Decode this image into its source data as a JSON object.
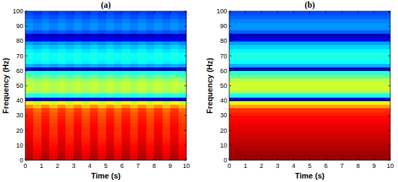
{
  "chart_data": [
    {
      "type": "heatmap",
      "title": "(a)",
      "x_label": "Time (s)",
      "y_label": "Frequency (Hz)",
      "xlim": [
        0,
        10
      ],
      "ylim": [
        0,
        100
      ],
      "xticks": [
        0,
        1,
        2,
        3,
        4,
        5,
        6,
        7,
        8,
        9,
        10
      ],
      "yticks": [
        0,
        10,
        20,
        30,
        40,
        50,
        60,
        70,
        80,
        90,
        100
      ],
      "zlim": [
        0,
        1
      ],
      "x_bins": [
        0,
        0.5,
        1,
        1.5,
        2,
        2.5,
        3,
        3.5,
        4,
        4.5,
        5,
        5.5,
        6,
        6.5,
        7,
        7.5,
        8,
        8.5,
        9,
        9.5,
        10
      ],
      "y_bins": [
        0,
        2.5,
        5,
        7.5,
        10,
        12.5,
        15,
        17.5,
        20,
        22.5,
        25,
        27.5,
        30,
        32.5,
        35,
        37.5,
        40,
        42.5,
        45,
        47.5,
        50,
        52.5,
        55,
        57.5,
        60,
        62.5,
        65,
        67.5,
        70,
        72.5,
        75,
        77.5,
        80,
        82.5,
        85,
        87.5,
        90,
        92.5,
        95,
        97.5,
        100
      ],
      "cells": [
        [
          0.95,
          0.9,
          0.95,
          0.9,
          0.95,
          0.9,
          0.95,
          0.9,
          0.95,
          0.9,
          0.95,
          0.9,
          0.95,
          0.9,
          0.95,
          0.9,
          0.95,
          0.9,
          0.95,
          0.9
        ],
        [
          0.94,
          0.89,
          0.94,
          0.89,
          0.94,
          0.89,
          0.94,
          0.89,
          0.94,
          0.89,
          0.94,
          0.89,
          0.94,
          0.89,
          0.94,
          0.89,
          0.94,
          0.89,
          0.94,
          0.89
        ],
        [
          0.93,
          0.88,
          0.93,
          0.88,
          0.93,
          0.88,
          0.93,
          0.88,
          0.93,
          0.88,
          0.93,
          0.88,
          0.93,
          0.88,
          0.93,
          0.88,
          0.93,
          0.88,
          0.93,
          0.88
        ],
        [
          0.92,
          0.87,
          0.92,
          0.87,
          0.92,
          0.87,
          0.92,
          0.87,
          0.92,
          0.87,
          0.92,
          0.87,
          0.92,
          0.87,
          0.92,
          0.87,
          0.92,
          0.87,
          0.92,
          0.87
        ],
        [
          0.91,
          0.86,
          0.91,
          0.86,
          0.91,
          0.86,
          0.91,
          0.86,
          0.91,
          0.86,
          0.91,
          0.86,
          0.91,
          0.86,
          0.91,
          0.86,
          0.91,
          0.86,
          0.91,
          0.86
        ],
        [
          0.9,
          0.85,
          0.9,
          0.85,
          0.9,
          0.85,
          0.9,
          0.85,
          0.9,
          0.85,
          0.9,
          0.85,
          0.9,
          0.85,
          0.9,
          0.85,
          0.9,
          0.85,
          0.9,
          0.85
        ],
        [
          0.89,
          0.84,
          0.89,
          0.84,
          0.89,
          0.84,
          0.89,
          0.84,
          0.89,
          0.84,
          0.89,
          0.84,
          0.89,
          0.84,
          0.89,
          0.84,
          0.89,
          0.84,
          0.89,
          0.84
        ],
        [
          0.88,
          0.83,
          0.88,
          0.83,
          0.88,
          0.83,
          0.88,
          0.83,
          0.88,
          0.83,
          0.88,
          0.83,
          0.88,
          0.83,
          0.88,
          0.83,
          0.88,
          0.83,
          0.88,
          0.83
        ],
        [
          0.88,
          0.83,
          0.88,
          0.83,
          0.88,
          0.83,
          0.88,
          0.83,
          0.88,
          0.83,
          0.88,
          0.83,
          0.88,
          0.83,
          0.88,
          0.83,
          0.88,
          0.83,
          0.88,
          0.83
        ],
        [
          0.87,
          0.82,
          0.87,
          0.82,
          0.87,
          0.82,
          0.87,
          0.82,
          0.87,
          0.82,
          0.87,
          0.82,
          0.87,
          0.82,
          0.87,
          0.82,
          0.87,
          0.82,
          0.87,
          0.82
        ],
        [
          0.86,
          0.81,
          0.86,
          0.81,
          0.86,
          0.81,
          0.86,
          0.81,
          0.86,
          0.81,
          0.86,
          0.81,
          0.86,
          0.81,
          0.86,
          0.81,
          0.86,
          0.81,
          0.86,
          0.81
        ],
        [
          0.85,
          0.8,
          0.85,
          0.8,
          0.85,
          0.8,
          0.85,
          0.8,
          0.85,
          0.8,
          0.85,
          0.8,
          0.85,
          0.8,
          0.85,
          0.8,
          0.85,
          0.8,
          0.85,
          0.8
        ],
        [
          0.84,
          0.79,
          0.84,
          0.79,
          0.84,
          0.79,
          0.84,
          0.79,
          0.84,
          0.79,
          0.84,
          0.79,
          0.84,
          0.79,
          0.84,
          0.79,
          0.84,
          0.79,
          0.84,
          0.79
        ],
        [
          0.82,
          0.77,
          0.82,
          0.77,
          0.82,
          0.77,
          0.82,
          0.77,
          0.82,
          0.77,
          0.82,
          0.77,
          0.82,
          0.77,
          0.82,
          0.77,
          0.82,
          0.77,
          0.82,
          0.77
        ],
        [
          0.74,
          0.69,
          0.74,
          0.69,
          0.74,
          0.69,
          0.74,
          0.69,
          0.74,
          0.69,
          0.74,
          0.69,
          0.74,
          0.69,
          0.74,
          0.69,
          0.74,
          0.69,
          0.74,
          0.69
        ],
        [
          0.62,
          0.57,
          0.62,
          0.57,
          0.62,
          0.57,
          0.62,
          0.57,
          0.62,
          0.57,
          0.62,
          0.57,
          0.62,
          0.57,
          0.62,
          0.57,
          0.62,
          0.57,
          0.62,
          0.57
        ],
        [
          0.1,
          0.08,
          0.1,
          0.08,
          0.1,
          0.08,
          0.1,
          0.08,
          0.1,
          0.08,
          0.1,
          0.08,
          0.1,
          0.08,
          0.1,
          0.08,
          0.1,
          0.08,
          0.1,
          0.08
        ],
        [
          0.42,
          0.4,
          0.42,
          0.4,
          0.42,
          0.4,
          0.42,
          0.4,
          0.42,
          0.4,
          0.42,
          0.4,
          0.42,
          0.4,
          0.42,
          0.4,
          0.42,
          0.4,
          0.42,
          0.4
        ],
        [
          0.55,
          0.53,
          0.55,
          0.53,
          0.55,
          0.53,
          0.55,
          0.53,
          0.55,
          0.53,
          0.55,
          0.53,
          0.55,
          0.53,
          0.55,
          0.53,
          0.55,
          0.53,
          0.55,
          0.53
        ],
        [
          0.57,
          0.55,
          0.57,
          0.55,
          0.57,
          0.55,
          0.57,
          0.55,
          0.57,
          0.55,
          0.57,
          0.55,
          0.57,
          0.55,
          0.57,
          0.55,
          0.57,
          0.55,
          0.57,
          0.55
        ],
        [
          0.57,
          0.55,
          0.57,
          0.55,
          0.57,
          0.55,
          0.57,
          0.55,
          0.57,
          0.55,
          0.57,
          0.55,
          0.57,
          0.55,
          0.57,
          0.55,
          0.57,
          0.55,
          0.57,
          0.55
        ],
        [
          0.54,
          0.52,
          0.54,
          0.52,
          0.54,
          0.52,
          0.54,
          0.52,
          0.54,
          0.52,
          0.54,
          0.52,
          0.54,
          0.52,
          0.54,
          0.52,
          0.54,
          0.52,
          0.54,
          0.52
        ],
        [
          0.48,
          0.46,
          0.48,
          0.46,
          0.48,
          0.46,
          0.48,
          0.46,
          0.48,
          0.46,
          0.48,
          0.46,
          0.48,
          0.46,
          0.48,
          0.46,
          0.48,
          0.46,
          0.48,
          0.46
        ],
        [
          0.42,
          0.4,
          0.42,
          0.4,
          0.42,
          0.4,
          0.42,
          0.4,
          0.42,
          0.4,
          0.42,
          0.4,
          0.42,
          0.4,
          0.42,
          0.4,
          0.42,
          0.4,
          0.42,
          0.4
        ],
        [
          0.08,
          0.06,
          0.08,
          0.06,
          0.08,
          0.06,
          0.08,
          0.06,
          0.08,
          0.06,
          0.08,
          0.06,
          0.08,
          0.06,
          0.08,
          0.06,
          0.08,
          0.06,
          0.08,
          0.06
        ],
        [
          0.3,
          0.28,
          0.3,
          0.28,
          0.3,
          0.28,
          0.3,
          0.28,
          0.3,
          0.28,
          0.3,
          0.28,
          0.3,
          0.28,
          0.3,
          0.28,
          0.3,
          0.28,
          0.3,
          0.28
        ],
        [
          0.38,
          0.36,
          0.38,
          0.36,
          0.38,
          0.36,
          0.38,
          0.36,
          0.38,
          0.36,
          0.38,
          0.36,
          0.38,
          0.36,
          0.38,
          0.36,
          0.38,
          0.36,
          0.38,
          0.36
        ],
        [
          0.4,
          0.38,
          0.4,
          0.38,
          0.4,
          0.38,
          0.4,
          0.38,
          0.4,
          0.38,
          0.4,
          0.38,
          0.4,
          0.38,
          0.4,
          0.38,
          0.4,
          0.38,
          0.4,
          0.38
        ],
        [
          0.4,
          0.38,
          0.4,
          0.38,
          0.4,
          0.38,
          0.4,
          0.38,
          0.4,
          0.38,
          0.4,
          0.38,
          0.4,
          0.38,
          0.4,
          0.38,
          0.4,
          0.38,
          0.4,
          0.38
        ],
        [
          0.37,
          0.35,
          0.37,
          0.35,
          0.37,
          0.35,
          0.37,
          0.35,
          0.37,
          0.35,
          0.37,
          0.35,
          0.37,
          0.35,
          0.37,
          0.35,
          0.37,
          0.35,
          0.37,
          0.35
        ],
        [
          0.33,
          0.31,
          0.33,
          0.31,
          0.33,
          0.31,
          0.33,
          0.31,
          0.33,
          0.31,
          0.33,
          0.31,
          0.33,
          0.31,
          0.33,
          0.31,
          0.33,
          0.31,
          0.33,
          0.31
        ],
        [
          0.28,
          0.26,
          0.28,
          0.26,
          0.28,
          0.26,
          0.28,
          0.26,
          0.28,
          0.26,
          0.28,
          0.26,
          0.28,
          0.26,
          0.28,
          0.26,
          0.28,
          0.26,
          0.28,
          0.26
        ],
        [
          0.12,
          0.1,
          0.12,
          0.1,
          0.12,
          0.1,
          0.12,
          0.1,
          0.12,
          0.1,
          0.12,
          0.1,
          0.12,
          0.1,
          0.12,
          0.1,
          0.12,
          0.1,
          0.12,
          0.1
        ],
        [
          0.08,
          0.06,
          0.08,
          0.06,
          0.08,
          0.06,
          0.08,
          0.06,
          0.08,
          0.06,
          0.08,
          0.06,
          0.08,
          0.06,
          0.08,
          0.06,
          0.08,
          0.06,
          0.08,
          0.06
        ],
        [
          0.22,
          0.2,
          0.22,
          0.2,
          0.22,
          0.2,
          0.22,
          0.2,
          0.22,
          0.2,
          0.22,
          0.2,
          0.22,
          0.2,
          0.22,
          0.2,
          0.22,
          0.2,
          0.22,
          0.2
        ],
        [
          0.27,
          0.25,
          0.27,
          0.25,
          0.27,
          0.25,
          0.27,
          0.25,
          0.27,
          0.25,
          0.27,
          0.25,
          0.27,
          0.25,
          0.27,
          0.25,
          0.27,
          0.25,
          0.27,
          0.25
        ],
        [
          0.27,
          0.25,
          0.27,
          0.25,
          0.27,
          0.25,
          0.27,
          0.25,
          0.27,
          0.25,
          0.27,
          0.25,
          0.27,
          0.25,
          0.27,
          0.25,
          0.27,
          0.25,
          0.27,
          0.25
        ],
        [
          0.25,
          0.23,
          0.25,
          0.23,
          0.25,
          0.23,
          0.25,
          0.23,
          0.25,
          0.23,
          0.25,
          0.23,
          0.25,
          0.23,
          0.25,
          0.23,
          0.25,
          0.23,
          0.25,
          0.23
        ],
        [
          0.22,
          0.2,
          0.22,
          0.2,
          0.22,
          0.2,
          0.22,
          0.2,
          0.22,
          0.2,
          0.22,
          0.2,
          0.22,
          0.2,
          0.22,
          0.2,
          0.22,
          0.2,
          0.22,
          0.2
        ],
        [
          0.2,
          0.18,
          0.2,
          0.18,
          0.2,
          0.18,
          0.2,
          0.18,
          0.2,
          0.18,
          0.2,
          0.18,
          0.2,
          0.18,
          0.2,
          0.18,
          0.2,
          0.18,
          0.2,
          0.18
        ]
      ]
    },
    {
      "type": "heatmap",
      "title": "(b)",
      "x_label": "Time (s)",
      "y_label": "Frequency (Hz)",
      "xlim": [
        0,
        10
      ],
      "ylim": [
        0,
        100
      ],
      "xticks": [
        0,
        1,
        2,
        3,
        4,
        5,
        6,
        7,
        8,
        9,
        10
      ],
      "yticks": [
        0,
        10,
        20,
        30,
        40,
        50,
        60,
        70,
        80,
        90,
        100
      ],
      "zlim": [
        0,
        1
      ],
      "x_bins": [
        0,
        10
      ],
      "y_bins": [
        0,
        2.5,
        5,
        7.5,
        10,
        12.5,
        15,
        17.5,
        20,
        22.5,
        25,
        27.5,
        30,
        32.5,
        35,
        37.5,
        40,
        42.5,
        45,
        47.5,
        50,
        52.5,
        55,
        57.5,
        60,
        62.5,
        65,
        67.5,
        70,
        72.5,
        75,
        77.5,
        80,
        82.5,
        85,
        87.5,
        90,
        92.5,
        95,
        97.5,
        100
      ],
      "cells": [
        [
          0.97
        ],
        [
          0.97
        ],
        [
          0.96
        ],
        [
          0.95
        ],
        [
          0.94
        ],
        [
          0.93
        ],
        [
          0.92
        ],
        [
          0.91
        ],
        [
          0.9
        ],
        [
          0.89
        ],
        [
          0.88
        ],
        [
          0.87
        ],
        [
          0.85
        ],
        [
          0.83
        ],
        [
          0.72
        ],
        [
          0.6
        ],
        [
          0.08
        ],
        [
          0.4
        ],
        [
          0.55
        ],
        [
          0.58
        ],
        [
          0.58
        ],
        [
          0.55
        ],
        [
          0.48
        ],
        [
          0.42
        ],
        [
          0.06
        ],
        [
          0.3
        ],
        [
          0.38
        ],
        [
          0.4
        ],
        [
          0.4
        ],
        [
          0.37
        ],
        [
          0.33
        ],
        [
          0.28
        ],
        [
          0.1
        ],
        [
          0.06
        ],
        [
          0.22
        ],
        [
          0.27
        ],
        [
          0.27
        ],
        [
          0.25
        ],
        [
          0.22
        ],
        [
          0.2
        ]
      ]
    }
  ]
}
